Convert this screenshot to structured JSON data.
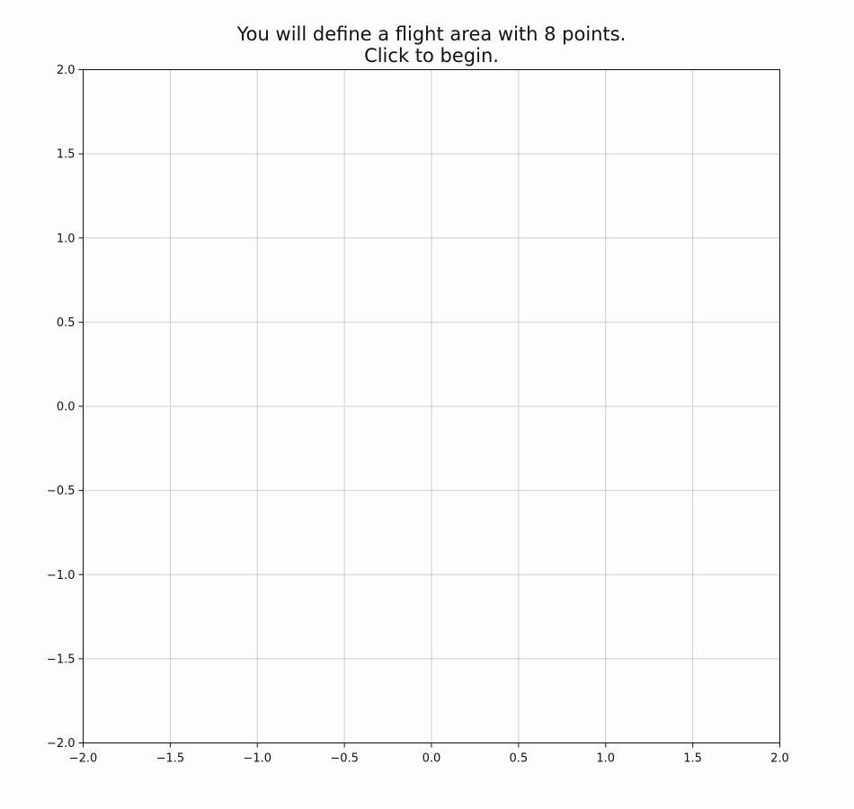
{
  "chart_data": {
    "type": "scatter",
    "title_lines": [
      "You will define a flight area with 8 points.",
      "Click to begin."
    ],
    "xlabel": "",
    "ylabel": "",
    "xlim": [
      -2.0,
      2.0
    ],
    "ylim": [
      -2.0,
      2.0
    ],
    "x_ticks": [
      -2.0,
      -1.5,
      -1.0,
      -0.5,
      0.0,
      0.5,
      1.0,
      1.5,
      2.0
    ],
    "y_ticks": [
      -2.0,
      -1.5,
      -1.0,
      -0.5,
      0.0,
      0.5,
      1.0,
      1.5,
      2.0
    ],
    "x_tick_labels": [
      "−2.0",
      "−1.5",
      "−1.0",
      "−0.5",
      "0.0",
      "0.5",
      "1.0",
      "1.5",
      "2.0"
    ],
    "y_tick_labels": [
      "−2.0",
      "−1.5",
      "−1.0",
      "−0.5",
      "0.0",
      "0.5",
      "1.0",
      "1.5",
      "2.0"
    ],
    "grid": true,
    "series": [],
    "colors": {
      "grid": "#9a9fb5",
      "axes": "#111111",
      "background": "#fdfdfd"
    }
  }
}
